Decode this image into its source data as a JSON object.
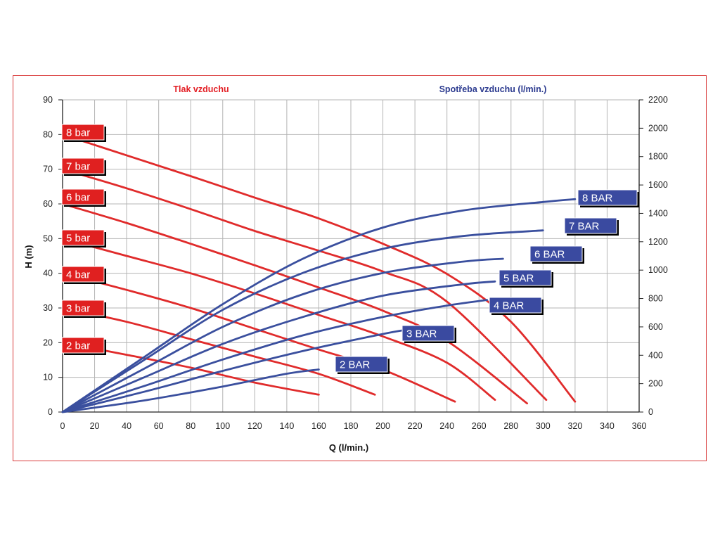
{
  "chart_data": {
    "type": "line",
    "title_left": "Tlak vzduchu",
    "title_right": "Spotřeba vzduchu (l/min.)",
    "xlabel": "Q (l/min.)",
    "ylabel": "H (m)",
    "xlim": [
      0,
      360
    ],
    "ylim": [
      0,
      90
    ],
    "y2lim": [
      0,
      2200
    ],
    "xticks": [
      0,
      20,
      40,
      60,
      80,
      100,
      120,
      140,
      160,
      180,
      200,
      220,
      240,
      260,
      280,
      300,
      320,
      340,
      360
    ],
    "yticks": [
      0,
      10,
      20,
      30,
      40,
      50,
      60,
      70,
      80,
      90
    ],
    "y2ticks": [
      0,
      200,
      400,
      600,
      800,
      1000,
      1200,
      1400,
      1600,
      1800,
      2000,
      2200
    ],
    "grid": true,
    "colors": {
      "pressure": "#e02b2b",
      "consumption": "#3a4f9e",
      "frame": "#d93a3a",
      "grid": "#b4b4b4"
    },
    "pressure_series": [
      {
        "name": "2 bar",
        "points": [
          [
            0,
            20
          ],
          [
            40,
            16.5
          ],
          [
            80,
            12.8
          ],
          [
            120,
            8.5
          ],
          [
            160,
            5
          ]
        ]
      },
      {
        "name": "3 bar",
        "points": [
          [
            0,
            30
          ],
          [
            40,
            26
          ],
          [
            80,
            21
          ],
          [
            120,
            16
          ],
          [
            160,
            11
          ],
          [
            195,
            5
          ]
        ]
      },
      {
        "name": "4 bar",
        "points": [
          [
            0,
            40
          ],
          [
            40,
            35.2
          ],
          [
            80,
            30
          ],
          [
            120,
            24
          ],
          [
            160,
            18
          ],
          [
            200,
            12.2
          ],
          [
            245,
            3
          ]
        ]
      },
      {
        "name": "5 bar",
        "points": [
          [
            0,
            50
          ],
          [
            40,
            45
          ],
          [
            80,
            40
          ],
          [
            120,
            34.2
          ],
          [
            160,
            28
          ],
          [
            200,
            21.8
          ],
          [
            240,
            14.2
          ],
          [
            270,
            3.5
          ]
        ]
      },
      {
        "name": "6 bar",
        "points": [
          [
            0,
            60
          ],
          [
            40,
            54.5
          ],
          [
            80,
            48.5
          ],
          [
            120,
            42.3
          ],
          [
            160,
            35.9
          ],
          [
            200,
            29.2
          ],
          [
            240,
            20.5
          ],
          [
            290,
            2.5
          ]
        ]
      },
      {
        "name": "7 bar",
        "points": [
          [
            0,
            70
          ],
          [
            40,
            64.5
          ],
          [
            80,
            58.5
          ],
          [
            120,
            52.2
          ],
          [
            160,
            46.5
          ],
          [
            200,
            40.5
          ],
          [
            240,
            31.8
          ],
          [
            302,
            3.5
          ]
        ]
      },
      {
        "name": "8 bar",
        "points": [
          [
            0,
            80
          ],
          [
            40,
            74
          ],
          [
            80,
            68
          ],
          [
            120,
            61.8
          ],
          [
            160,
            55.8
          ],
          [
            200,
            48.5
          ],
          [
            240,
            39.8
          ],
          [
            280,
            26
          ],
          [
            320,
            3
          ]
        ]
      }
    ],
    "consumption_series": [
      {
        "name": "2 BAR",
        "points": [
          [
            0,
            0
          ],
          [
            50,
            80
          ],
          [
            100,
            180
          ],
          [
            140,
            270
          ],
          [
            160,
            300
          ]
        ]
      },
      {
        "name": "3 BAR",
        "points": [
          [
            0,
            0
          ],
          [
            50,
            140
          ],
          [
            100,
            290
          ],
          [
            150,
            430
          ],
          [
            200,
            550
          ],
          [
            215,
            580
          ]
        ]
      },
      {
        "name": "4 BAR",
        "points": [
          [
            0,
            0
          ],
          [
            50,
            180
          ],
          [
            100,
            370
          ],
          [
            150,
            540
          ],
          [
            200,
            670
          ],
          [
            240,
            750
          ],
          [
            265,
            790
          ]
        ]
      },
      {
        "name": "5 BAR",
        "points": [
          [
            0,
            0
          ],
          [
            50,
            240
          ],
          [
            100,
            480
          ],
          [
            150,
            670
          ],
          [
            200,
            820
          ],
          [
            250,
            900
          ],
          [
            270,
            920
          ]
        ]
      },
      {
        "name": "6 BAR",
        "points": [
          [
            0,
            0
          ],
          [
            50,
            300
          ],
          [
            100,
            600
          ],
          [
            150,
            830
          ],
          [
            200,
            980
          ],
          [
            250,
            1060
          ],
          [
            275,
            1080
          ]
        ]
      },
      {
        "name": "7 BAR",
        "points": [
          [
            0,
            0
          ],
          [
            50,
            360
          ],
          [
            100,
            720
          ],
          [
            150,
            980
          ],
          [
            200,
            1150
          ],
          [
            250,
            1240
          ],
          [
            300,
            1280
          ]
        ]
      },
      {
        "name": "8 BAR",
        "points": [
          [
            0,
            0
          ],
          [
            50,
            380
          ],
          [
            100,
            760
          ],
          [
            150,
            1080
          ],
          [
            200,
            1300
          ],
          [
            250,
            1420
          ],
          [
            300,
            1480
          ],
          [
            320,
            1500
          ]
        ]
      }
    ]
  }
}
